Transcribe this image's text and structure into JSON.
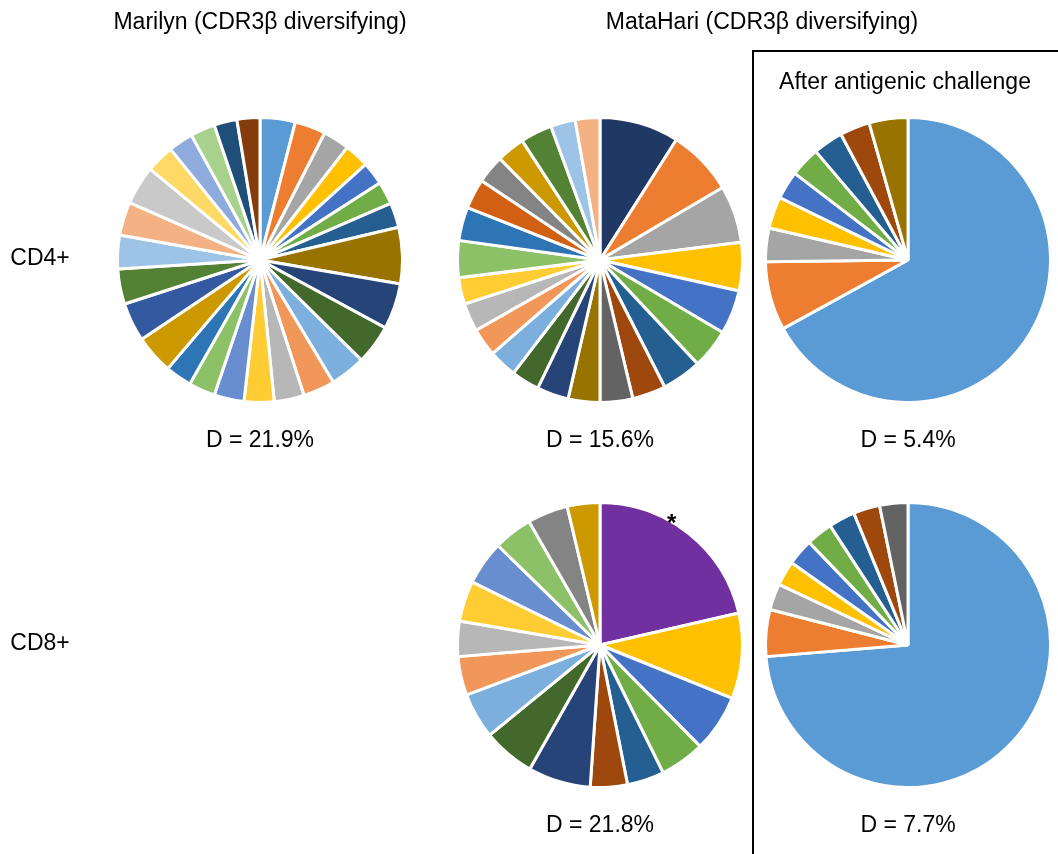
{
  "chart_data": [
    {
      "type": "pie",
      "title": "Marilyn (CDR3β diversifying)",
      "subtitle": "D = 21.9%",
      "annotations": [
        "CD4+"
      ],
      "categories": [
        null,
        null,
        null,
        null,
        null,
        null,
        null,
        null,
        null,
        null,
        null,
        null,
        null,
        null,
        null,
        null,
        null,
        null,
        null,
        null,
        null,
        null,
        null,
        null,
        null,
        null,
        null,
        null
      ],
      "values": [
        4.0,
        3.5,
        3.0,
        2.8,
        2.6,
        2.6,
        2.8,
        6.4,
        5.2,
        4.5,
        4.0,
        3.6,
        3.4,
        3.4,
        3.4,
        3.0,
        3.0,
        4.4,
        4.4,
        4.0,
        3.8,
        3.8,
        4.4,
        3.2,
        2.8,
        2.8,
        2.6,
        2.6
      ],
      "colors": [
        "#5b9bd5",
        "#ed7d31",
        "#a5a5a5",
        "#ffc000",
        "#4472c4",
        "#70ad47",
        "#255e91",
        "#997300",
        "#264478",
        "#43682b",
        "#7cafdd",
        "#f1975a",
        "#b7b7b7",
        "#ffcd33",
        "#698ed0",
        "#8cc168",
        "#2e75b6",
        "#cc9a00",
        "#335aa1",
        "#548235",
        "#9dc3e6",
        "#f4b183",
        "#c9c9c9",
        "#ffd966",
        "#8faadc",
        "#a9d18e",
        "#1f4e79",
        "#843c0c"
      ]
    },
    {
      "type": "pie",
      "title": "MataHari (CDR3β diversifying)",
      "subtitle": "D = 15.6%",
      "categories": [
        null,
        null,
        null,
        null,
        null,
        null,
        null,
        null,
        null,
        null,
        null,
        null,
        null,
        null,
        null,
        null,
        null,
        null,
        null,
        null,
        null,
        null,
        null,
        null
      ],
      "values": [
        9.0,
        7.5,
        6.5,
        5.5,
        5.0,
        4.5,
        4.5,
        3.8,
        3.7,
        3.6,
        3.6,
        3.2,
        3.2,
        3.2,
        3.2,
        3.0,
        4.2,
        3.8,
        3.4,
        3.2,
        3.2,
        3.6,
        2.8,
        2.8
      ],
      "colors": [
        "#203864",
        "#ed7d31",
        "#a5a5a5",
        "#ffc000",
        "#4472c4",
        "#70ad47",
        "#255e91",
        "#9e480e",
        "#636363",
        "#997300",
        "#264478",
        "#43682b",
        "#7cafdd",
        "#f1975a",
        "#b7b7b7",
        "#ffcd33",
        "#8cc168",
        "#2e75b6",
        "#d26012",
        "#848484",
        "#cc9a00",
        "#548235",
        "#9dc3e6",
        "#f4b183"
      ]
    },
    {
      "type": "pie",
      "title": "After antigenic challenge",
      "subtitle": "D = 5.4%",
      "categories": [
        null,
        null,
        null,
        null,
        null,
        null,
        null,
        null,
        null
      ],
      "values": [
        67.0,
        7.8,
        3.8,
        3.6,
        3.2,
        3.4,
        3.4,
        3.4,
        4.4
      ],
      "colors": [
        "#5b9bd5",
        "#ed7d31",
        "#a5a5a5",
        "#ffc000",
        "#4472c4",
        "#70ad47",
        "#255e91",
        "#9e480e",
        "#997300"
      ]
    },
    {
      "type": "pie",
      "subtitle": "D = 21.8%",
      "annotations": [
        "CD8+",
        {
          "text": "*"
        }
      ],
      "categories": [
        null,
        null,
        null,
        null,
        null,
        null,
        null,
        null,
        null,
        null,
        null,
        null,
        null,
        null,
        null,
        null
      ],
      "values": [
        21.4,
        9.7,
        6.5,
        5.1,
        4.2,
        4.2,
        7.1,
        5.9,
        5.2,
        4.4,
        4.0,
        4.6,
        5.0,
        4.4,
        4.6,
        3.7
      ],
      "colors": [
        "#7030a0",
        "#ffc000",
        "#4472c4",
        "#70ad47",
        "#255e91",
        "#9e480e",
        "#264478",
        "#43682b",
        "#7cafdd",
        "#f1975a",
        "#b7b7b7",
        "#ffcd33",
        "#698ed0",
        "#8cc168",
        "#848484",
        "#cc9a00"
      ]
    },
    {
      "type": "pie",
      "subtitle": "D = 7.7%",
      "categories": [
        null,
        null,
        null,
        null,
        null,
        null,
        null,
        null,
        null
      ],
      "values": [
        73.7,
        5.3,
        3.0,
        2.8,
        3.0,
        3.0,
        3.0,
        3.0,
        3.2
      ],
      "colors": [
        "#5b9bd5",
        "#ed7d31",
        "#a5a5a5",
        "#ffc000",
        "#4472c4",
        "#70ad47",
        "#255e91",
        "#9e480e",
        "#636363"
      ]
    }
  ]
}
